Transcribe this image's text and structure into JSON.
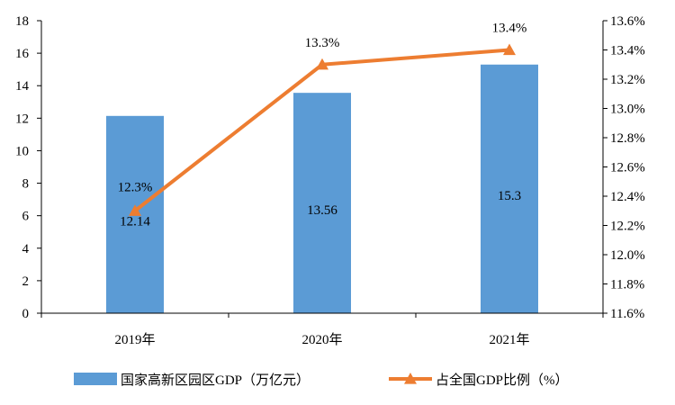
{
  "chart_data": {
    "type": "bar+line",
    "categories": [
      "2019年",
      "2020年",
      "2021年"
    ],
    "series": [
      {
        "name": "国家高新区园区GDP（万亿元）",
        "type": "bar",
        "axis": "left",
        "values": [
          12.14,
          13.56,
          15.3
        ],
        "data_labels": [
          "12.14",
          "13.56",
          "15.3"
        ],
        "color": "#5B9BD5"
      },
      {
        "name": "占全国GDP比例（%）",
        "type": "line",
        "axis": "right",
        "values": [
          12.3,
          13.3,
          13.4
        ],
        "data_labels": [
          "12.3%",
          "13.3%",
          "13.4%"
        ],
        "color": "#ED7D31",
        "marker": "triangle"
      }
    ],
    "left_axis": {
      "ylim": [
        0,
        18
      ],
      "ticks": [
        0,
        2,
        4,
        6,
        8,
        10,
        12,
        14,
        16,
        18
      ],
      "tick_labels": [
        "0",
        "2",
        "4",
        "6",
        "8",
        "10",
        "12",
        "14",
        "16",
        "18"
      ]
    },
    "right_axis": {
      "ylim": [
        11.6,
        13.6
      ],
      "ticks": [
        11.6,
        11.8,
        12.0,
        12.2,
        12.4,
        12.6,
        12.8,
        13.0,
        13.2,
        13.4,
        13.6
      ],
      "tick_labels": [
        "11.6%",
        "11.8%",
        "12.0%",
        "12.2%",
        "12.4%",
        "12.6%",
        "12.8%",
        "13.0%",
        "13.2%",
        "13.4%",
        "13.6%"
      ]
    },
    "grid": false,
    "legend_position": "bottom"
  }
}
